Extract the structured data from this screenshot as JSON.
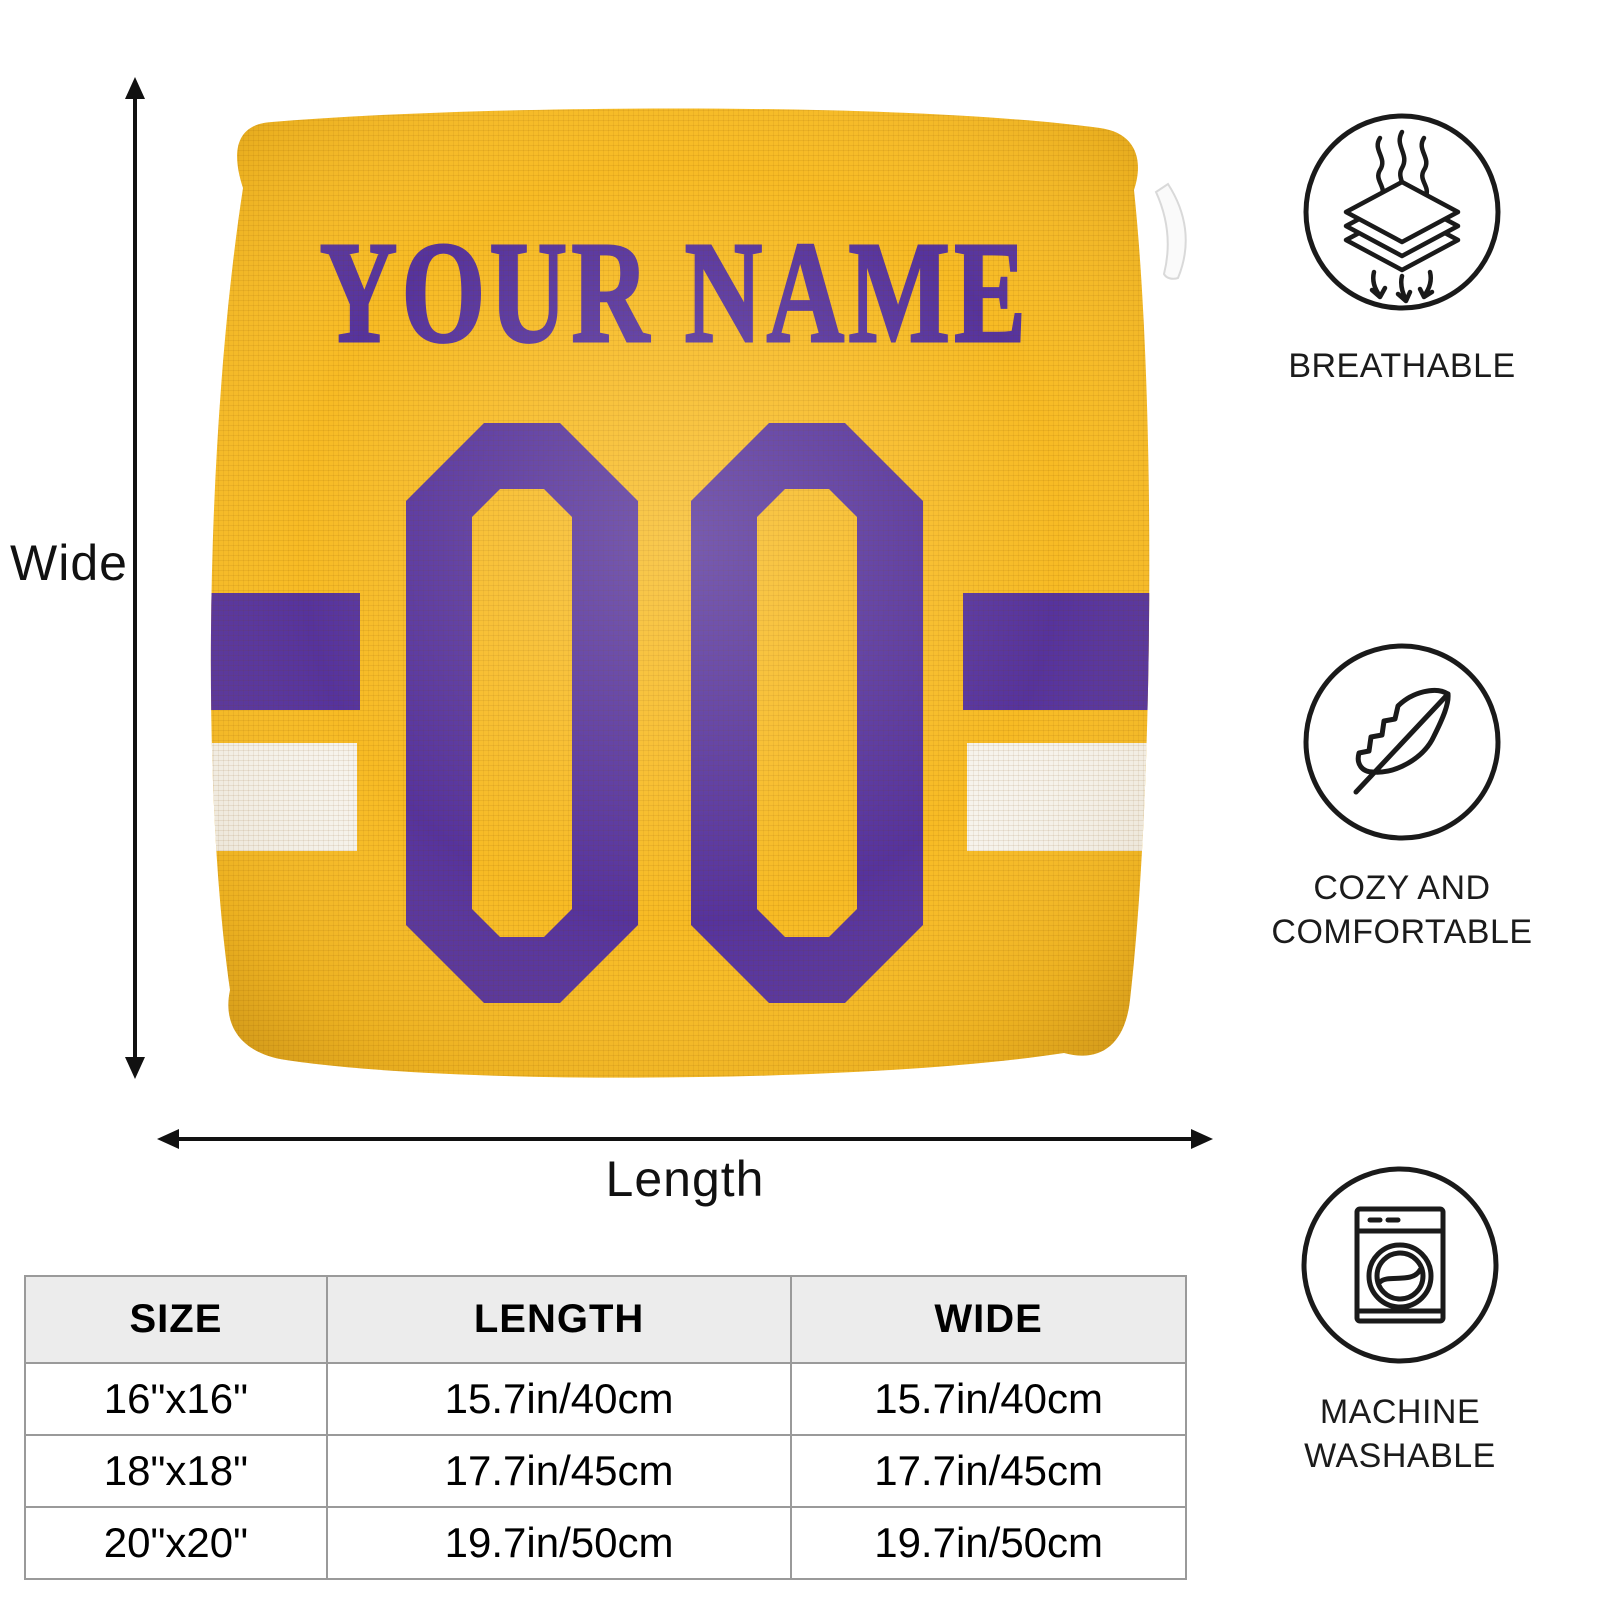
{
  "pillow": {
    "name_text": "YOUR NAME",
    "number_text": "00",
    "colors": {
      "pillow_gold": "#F7BB24",
      "jersey_purple": "#56339D",
      "stripe_white": "#F6F3EC",
      "icon_line": "#1A1A1A",
      "table_header_bg": "#ECECEC",
      "table_border": "#9A9A9A"
    }
  },
  "dimensions": {
    "wide_label": "Wide",
    "length_label": "Length"
  },
  "features": [
    {
      "icon": "breathable-fabric-icon",
      "label_lines": [
        "BREATHABLE"
      ]
    },
    {
      "icon": "feather-icon",
      "label_lines": [
        "COZY AND",
        "COMFORTABLE"
      ]
    },
    {
      "icon": "washing-machine-icon",
      "label_lines": [
        "MACHINE",
        "WASHABLE"
      ]
    }
  ],
  "size_table": {
    "headers": [
      "SIZE",
      "LENGTH",
      "WIDE"
    ],
    "rows": [
      [
        "16\"x16\"",
        "15.7in/40cm",
        "15.7in/40cm"
      ],
      [
        "18\"x18\"",
        "17.7in/45cm",
        "17.7in/45cm"
      ],
      [
        "20\"x20\"",
        "19.7in/50cm",
        "19.7in/50cm"
      ]
    ]
  }
}
